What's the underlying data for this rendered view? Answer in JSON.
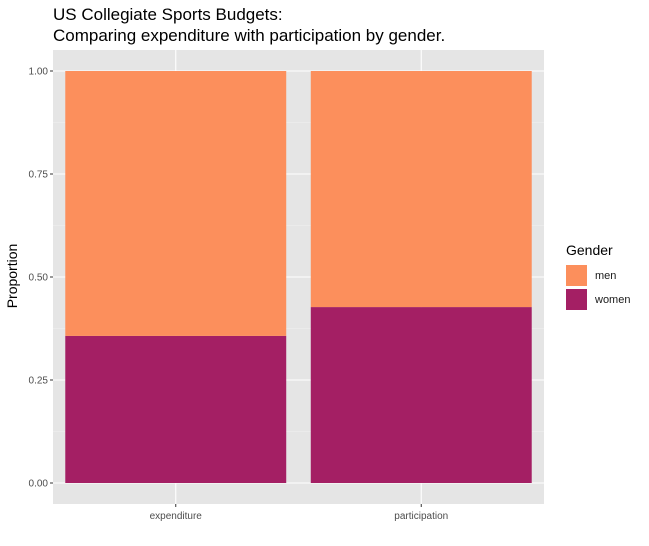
{
  "chart_data": {
    "type": "bar",
    "stacked": true,
    "title": "US Collegiate Sports Budgets:",
    "subtitle": "Comparing expenditure with participation by gender.",
    "xlabel": "",
    "ylabel": "Proportion",
    "ylim": [
      0,
      1
    ],
    "yticks": [
      "0.00",
      "0.25",
      "0.50",
      "0.75",
      "1.00"
    ],
    "categories": [
      "expenditure",
      "participation"
    ],
    "series": [
      {
        "name": "women",
        "color": "#A41F64",
        "values": [
          0.357,
          0.427
        ]
      },
      {
        "name": "men",
        "color": "#FC8F5C",
        "values": [
          0.643,
          0.573
        ]
      }
    ],
    "legend": {
      "title": "Gender",
      "position": "right",
      "items": [
        "men",
        "women"
      ]
    },
    "grid": true,
    "panel_background": "#E5E5E5"
  }
}
